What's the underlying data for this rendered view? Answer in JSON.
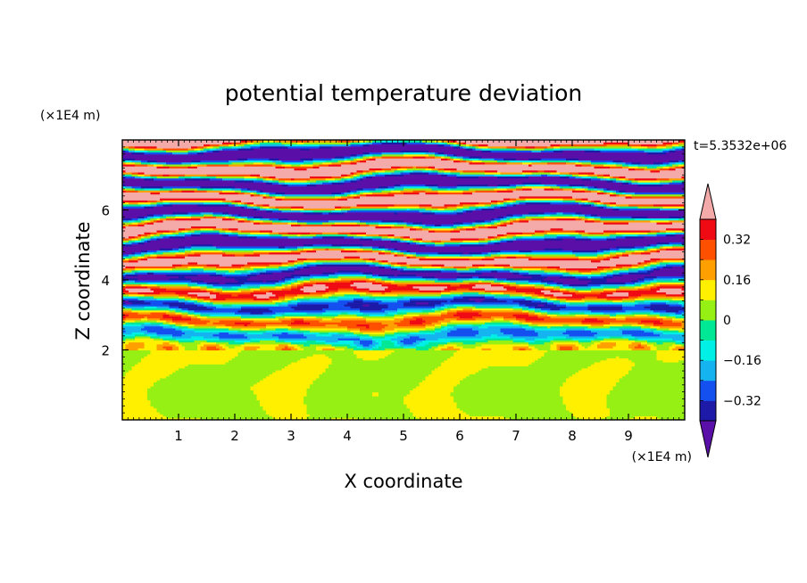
{
  "chart_data": {
    "type": "heatmap",
    "title": "potential temperature deviation",
    "xlabel": "X coordinate",
    "ylabel": "Z coordinate",
    "x_unit": "(×1E4 m)",
    "y_unit": "(×1E4 m)",
    "time_label": "t=5.3532e+06",
    "xlim": [
      0,
      10
    ],
    "ylim": [
      0,
      8
    ],
    "x_ticks": [
      "1",
      "2",
      "3",
      "4",
      "5",
      "6",
      "7",
      "8",
      "9"
    ],
    "y_ticks": [
      "2",
      "4",
      "6"
    ],
    "colorbar": {
      "labels": [
        "0.32",
        "0.16",
        "0",
        "−0.16",
        "−0.32"
      ],
      "label_values": [
        0.32,
        0.16,
        0,
        -0.16,
        -0.32
      ],
      "levels": [
        -0.4,
        -0.32,
        -0.24,
        -0.16,
        -0.08,
        0,
        0.08,
        0.16,
        0.24,
        0.32,
        0.4
      ],
      "colors": [
        "#5a0fa8",
        "#1d1aa8",
        "#1450f0",
        "#15b4f0",
        "#00f0e6",
        "#00e896",
        "#96f014",
        "#fff000",
        "#ffa000",
        "#ff5000",
        "#f00a14",
        "#f5aaaa"
      ],
      "extend": "both"
    },
    "regions": {
      "lower_layer_z": [
        0,
        2
      ],
      "lower_layer_values": [
        0,
        0.08
      ],
      "stratified_layer_z": [
        2,
        8
      ],
      "stratified_layer_values": [
        -0.4,
        0.4
      ]
    }
  }
}
